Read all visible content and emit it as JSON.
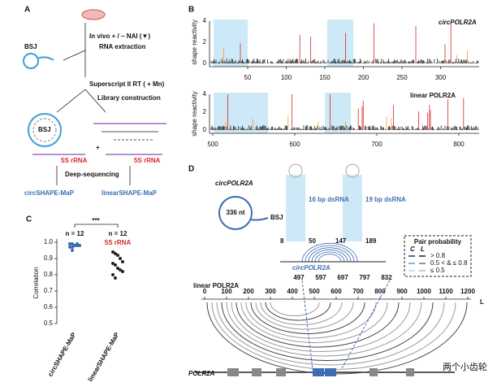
{
  "panel_a": {
    "label": "A",
    "treatment": "In vivo + / − NAI (▼)",
    "extraction": "RNA extraction",
    "bsj": "BSJ",
    "rt": "Superscript II RT ( + Mn)",
    "library": "Library construction",
    "bsj_inner": "BSJ",
    "rrna_left": "5S rRNA",
    "plus": "+",
    "rrna_right": "5S rRNA",
    "sequencing": "Deep-sequencing",
    "method_circ": "circSHAPE-MaP",
    "method_linear": "linearSHAPE-MaP"
  },
  "panel_b": {
    "label": "B",
    "y_label": "shape reactivity",
    "top": {
      "title": "circPOLR2A",
      "yticks": [
        "4",
        "2",
        "0"
      ],
      "xticks": [
        "50",
        "100",
        "150",
        "200",
        "250",
        "300"
      ]
    },
    "bottom": {
      "title": "linear POLR2A",
      "yticks": [
        "4",
        "2",
        "0"
      ],
      "xticks": [
        "500",
        "600",
        "700",
        "800"
      ]
    }
  },
  "chart_data": {
    "type": "scatter",
    "label": "C",
    "significance": "***",
    "y_label": "Correlation",
    "categories": [
      "circSHAPE-MaP",
      "linearSHAPE-MaP"
    ],
    "counts": [
      "n = 12",
      "n = 12"
    ],
    "annotation": "5S rRNA",
    "ylim": [
      0.5,
      1.0
    ],
    "yticks": [
      {
        "value": 1.0,
        "label": "1.0"
      },
      {
        "value": 0.9,
        "label": "0.9"
      },
      {
        "value": 0.8,
        "label": "0.8"
      },
      {
        "value": 0.7,
        "label": "0.7"
      },
      {
        "value": 0.6,
        "label": "0.6"
      },
      {
        "value": 0.5,
        "label": "0.5"
      }
    ],
    "series": [
      {
        "name": "circSHAPE-MaP",
        "color": "#3d6db5",
        "values": [
          0.99,
          0.99,
          0.98,
          0.98,
          0.98,
          0.99,
          0.97,
          0.98,
          0.99,
          0.98,
          0.97,
          0.95
        ]
      },
      {
        "name": "linearSHAPE-MaP",
        "color": "#222222",
        "values": [
          0.94,
          0.93,
          0.92,
          0.9,
          0.88,
          0.87,
          0.86,
          0.84,
          0.83,
          0.82,
          0.8,
          0.78
        ]
      }
    ]
  },
  "panel_d": {
    "label": "D",
    "circ_name": "circPOLR2A",
    "size": "336 nt",
    "bsj": "BSJ",
    "dsrna_1": "16 bp dsRNA",
    "dsrna_2": "19 bp dsRNA",
    "positions": [
      "8",
      "50",
      "147",
      "189"
    ],
    "legend": {
      "title": "Pair probability",
      "col_c": "C",
      "col_l": "L",
      "rows": [
        "> 0.8",
        "0.5 < & ≤ 0.8",
        "≤ 0.5"
      ]
    },
    "circ_track": "circPOLR2A",
    "linear_track": "linear POLR2A",
    "exon_positions": [
      "497",
      "597",
      "697",
      "797",
      "832"
    ],
    "axis": [
      "0",
      "100",
      "200",
      "300",
      "400",
      "500",
      "600",
      "700",
      "800",
      "900",
      "1000",
      "1100",
      "1200"
    ],
    "axis_end": "L",
    "gene": "POLR2A",
    "watermark": "两个小齿轮"
  }
}
